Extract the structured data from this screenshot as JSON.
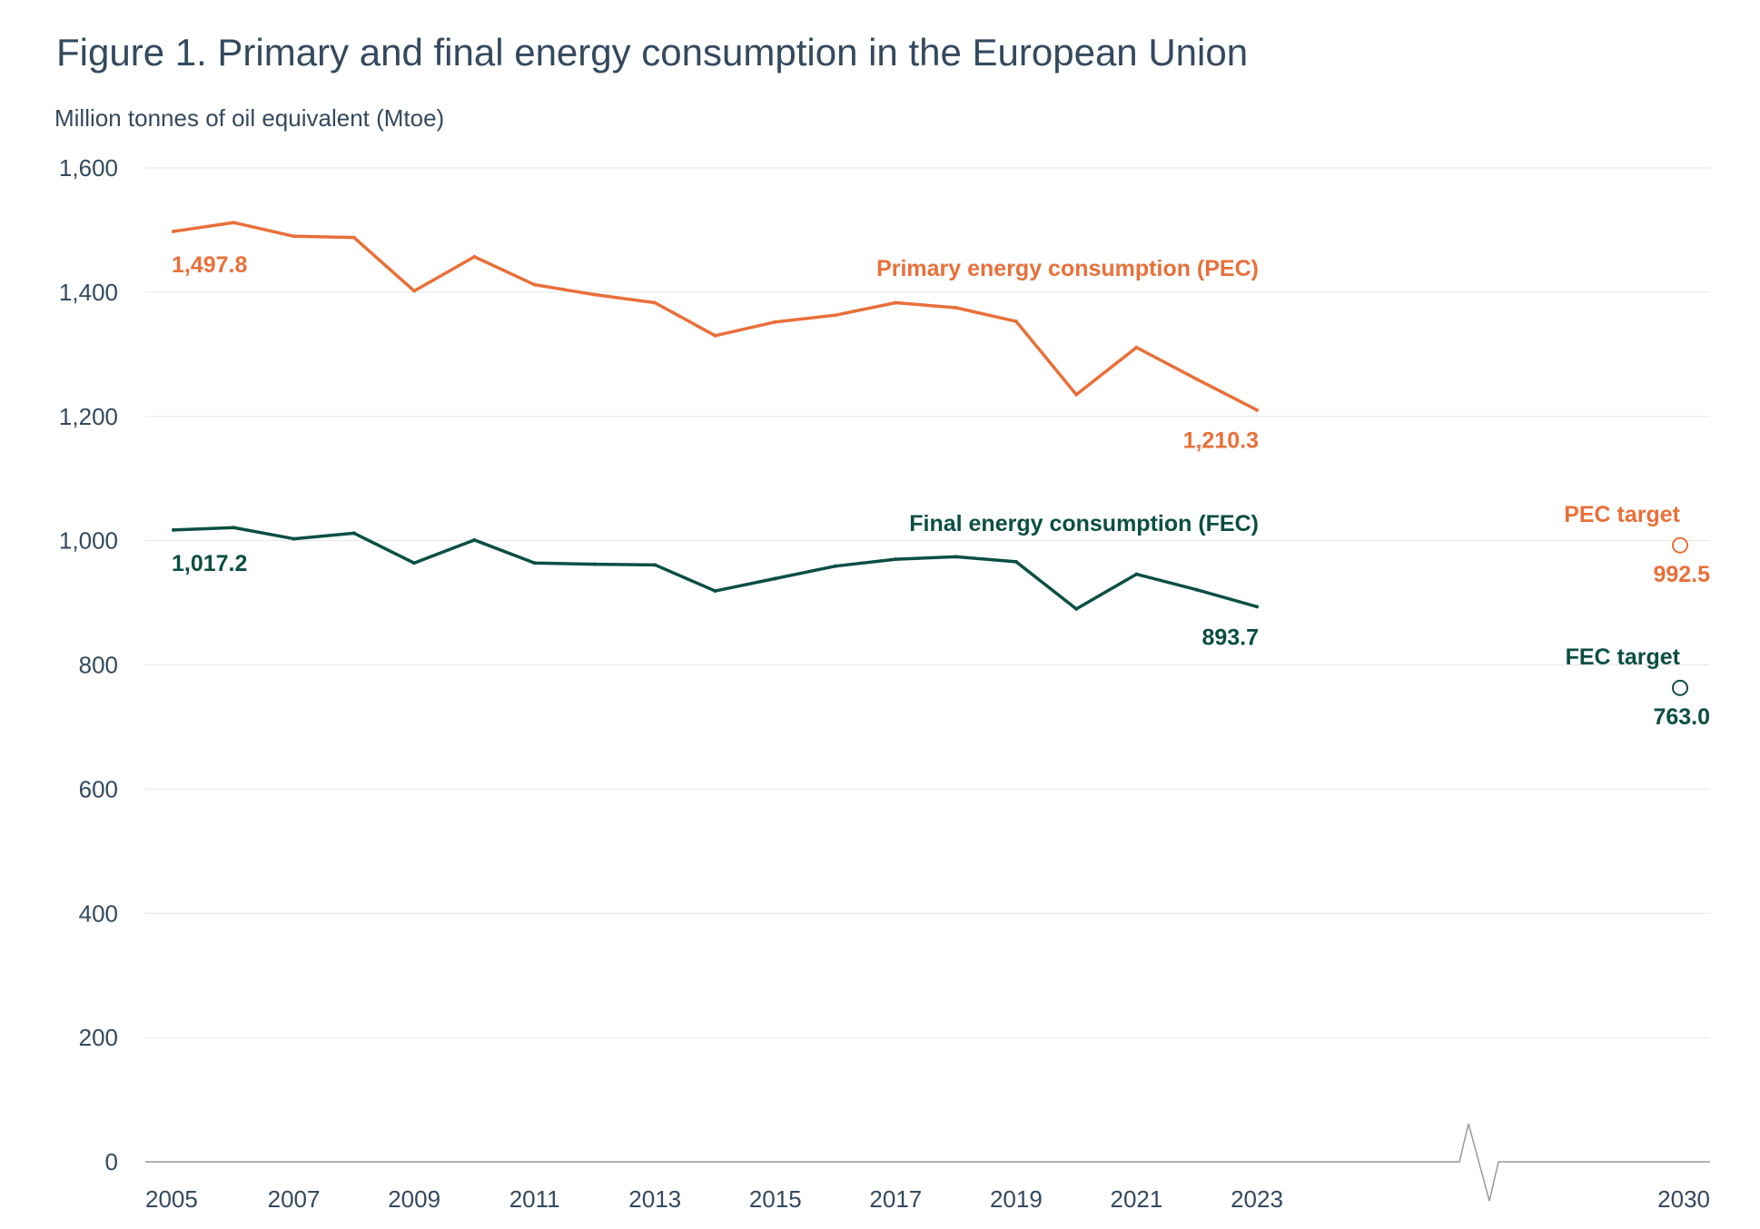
{
  "chart_data": {
    "type": "line",
    "title": "Figure 1. Primary and final energy consumption in the European Union",
    "ylabel": "Million tonnes of oil equivalent (Mtoe)",
    "xlabel": "",
    "ylim": [
      0,
      1600
    ],
    "yticks": [
      "0",
      "200",
      "400",
      "600",
      "800",
      "1,000",
      "1,200",
      "1,400",
      "1,600"
    ],
    "ytick_values": [
      0,
      200,
      400,
      600,
      800,
      1000,
      1200,
      1400,
      1600
    ],
    "xticks": [
      "2005",
      "2007",
      "2009",
      "2011",
      "2013",
      "2015",
      "2017",
      "2019",
      "2021",
      "2023",
      "2030"
    ],
    "grid": true,
    "axis_break": "between 2023 and 2030",
    "x": [
      2005,
      2006,
      2007,
      2008,
      2009,
      2010,
      2011,
      2012,
      2013,
      2014,
      2015,
      2016,
      2017,
      2018,
      2019,
      2020,
      2021,
      2022,
      2023
    ],
    "series": [
      {
        "name": "Primary energy consumption (PEC)",
        "color": "#e8703a",
        "values": [
          1497.8,
          1512,
          1490,
          1488,
          1402,
          1457,
          1412,
          1396,
          1383,
          1330,
          1352,
          1363,
          1383,
          1375,
          1353,
          1235,
          1311,
          1260,
          1210.3
        ],
        "start_label": "1,497.8",
        "end_label": "1,210.3",
        "target": {
          "label": "PEC target",
          "year": 2030,
          "value": 992.5,
          "value_label": "992.5"
        }
      },
      {
        "name": "Final energy consumption (FEC)",
        "color": "#0b4f43",
        "values": [
          1017.2,
          1021,
          1003,
          1012,
          964,
          1001,
          964,
          962,
          961,
          919,
          939,
          959,
          970,
          974,
          966,
          890,
          946,
          921,
          893.7
        ],
        "start_label": "1,017.2",
        "end_label": "893.7",
        "target": {
          "label": "FEC target",
          "year": 2030,
          "value": 763.0,
          "value_label": "763.0"
        }
      }
    ]
  }
}
